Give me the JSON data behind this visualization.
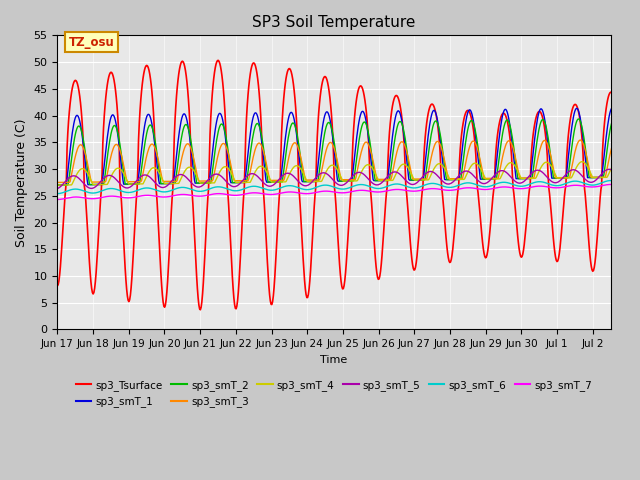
{
  "title": "SP3 Soil Temperature",
  "xlabel": "Time",
  "ylabel": "Soil Temperature (C)",
  "ylim": [
    0,
    55
  ],
  "annotation": "TZ_osu",
  "fig_bg_color": "#c8c8c8",
  "plot_bg_color": "#e8e8e8",
  "grid_color": "#ffffff",
  "x_tick_labels": [
    "Jun 17",
    "Jun 18",
    "Jun 19",
    "Jun 20",
    "Jun 21",
    "Jun 22",
    "Jun 23",
    "Jun 24",
    "Jun 25",
    "Jun 26",
    "Jun 27",
    "Jun 28",
    "Jun 29",
    "Jun 30",
    "Jul 1",
    "Jul 2"
  ],
  "series": [
    {
      "label": "sp3_Tsurface",
      "color": "#ff0000"
    },
    {
      "label": "sp3_smT_1",
      "color": "#0000dd"
    },
    {
      "label": "sp3_smT_2",
      "color": "#00bb00"
    },
    {
      "label": "sp3_smT_3",
      "color": "#ff8800"
    },
    {
      "label": "sp3_smT_4",
      "color": "#cccc00"
    },
    {
      "label": "sp3_smT_5",
      "color": "#aa00aa"
    },
    {
      "label": "sp3_smT_6",
      "color": "#00cccc"
    },
    {
      "label": "sp3_smT_7",
      "color": "#ff00ff"
    }
  ],
  "n_days": 16,
  "pts_per_day": 48
}
